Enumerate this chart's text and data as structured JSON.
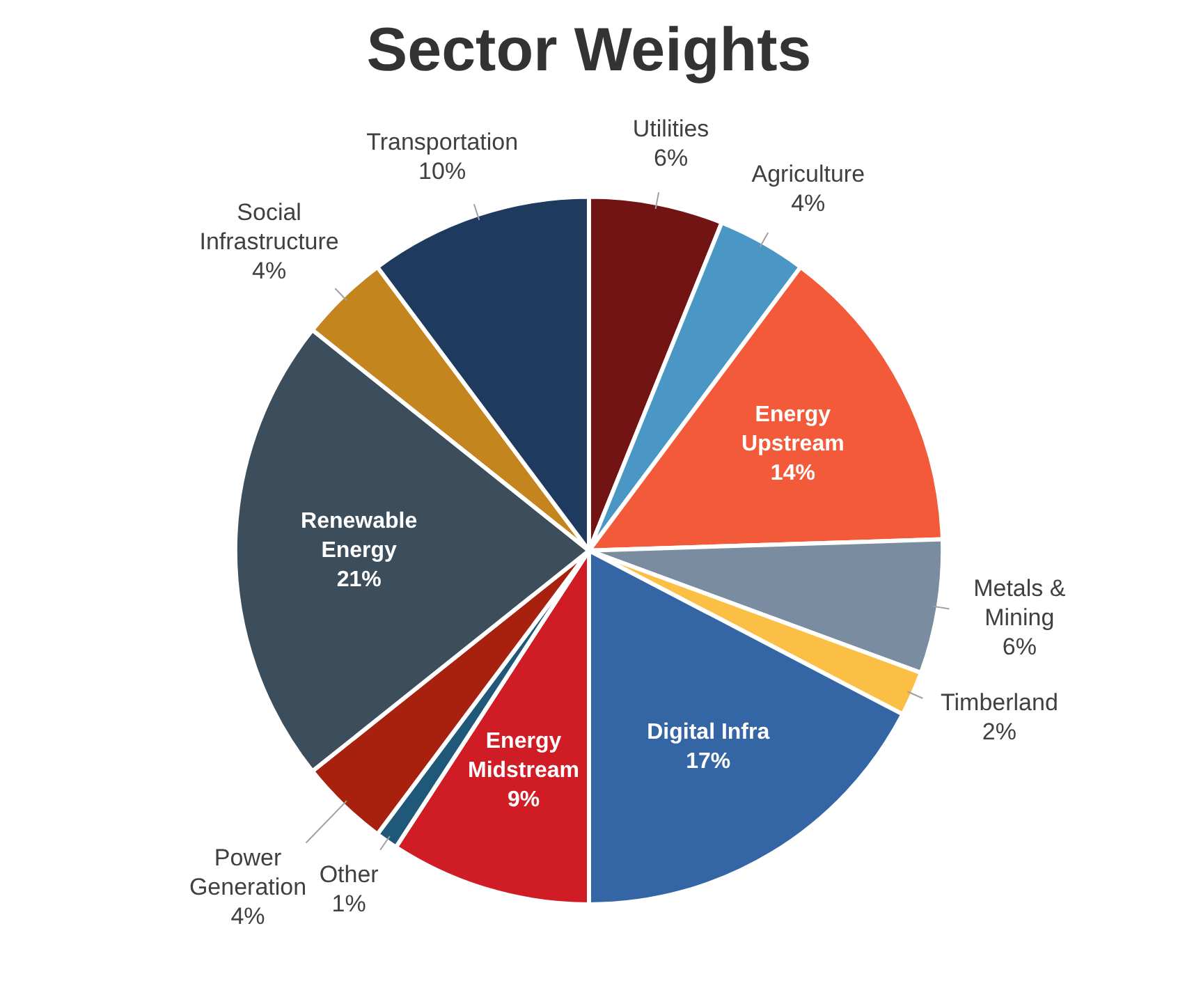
{
  "chart_data": {
    "type": "pie",
    "title": "Sector Weights",
    "categories": [
      "Utilities",
      "Agriculture",
      "Energy Upstream",
      "Metals & Mining",
      "Timberland",
      "Digital Infra",
      "Energy Midstream",
      "Other",
      "Power Generation",
      "Renewable Energy",
      "Social Infrastructure",
      "Transportation"
    ],
    "values": [
      6,
      4,
      14,
      6,
      2,
      17,
      9,
      1,
      4,
      21,
      4,
      10
    ],
    "colors": [
      "#731414",
      "#4a96c4",
      "#f25a3a",
      "#7a8ca0",
      "#fbbf45",
      "#3465a4",
      "#d01c24",
      "#1f5878",
      "#a8200e",
      "#3c4d5c",
      "#c4841e",
      "#1e3a5f"
    ],
    "value_labels": [
      "6%",
      "4%",
      "14%",
      "6%",
      "2%",
      "17%",
      "9%",
      "1%",
      "4%",
      "21%",
      "4%",
      "10%"
    ],
    "legend": false
  }
}
